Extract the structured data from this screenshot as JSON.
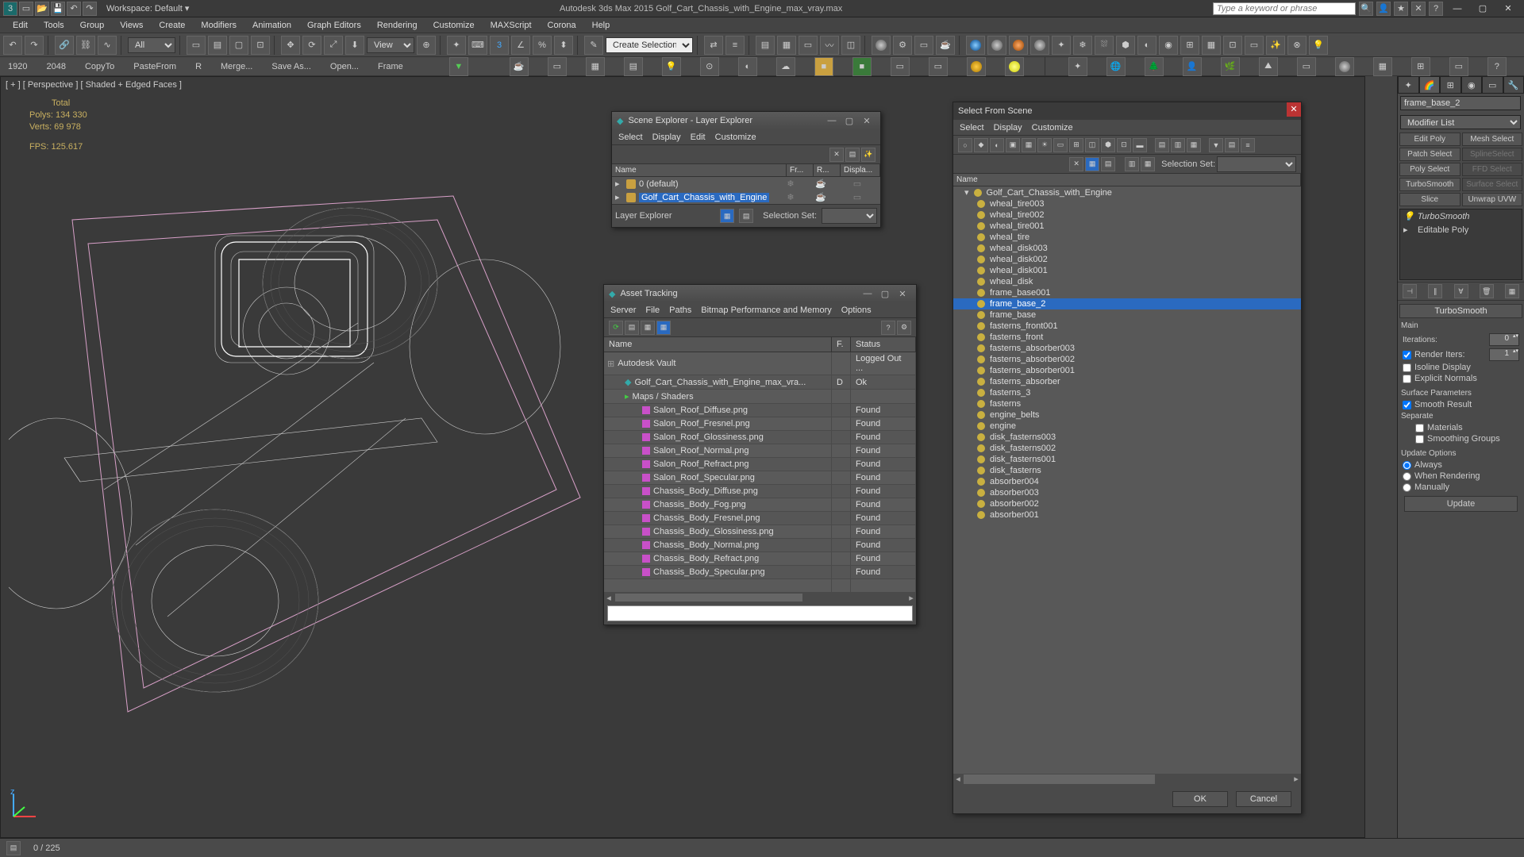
{
  "titlebar": {
    "workspace_label": "Workspace: Default",
    "app_title": "Autodesk 3ds Max 2015    Golf_Cart_Chassis_with_Engine_max_vray.max",
    "search_placeholder": "Type a keyword or phrase"
  },
  "menubar": [
    "Edit",
    "Tools",
    "Group",
    "Views",
    "Create",
    "Modifiers",
    "Animation",
    "Graph Editors",
    "Rendering",
    "Customize",
    "MAXScript",
    "Corona",
    "Help"
  ],
  "toolbar1": {
    "filter_label": "All",
    "view_label": "View",
    "selset_label": "Create Selection Se"
  },
  "toolbar2": [
    "1920",
    "2048",
    "CopyTo",
    "PasteFrom",
    "R",
    "Merge...",
    "Save As...",
    "Open...",
    "Frame"
  ],
  "viewport": {
    "label": "[ + ] [ Perspective ] [ Shaded + Edged Faces ]",
    "stats_total": "Total",
    "stats_polys": "Polys:   134 330",
    "stats_verts": "Verts:   69 978",
    "stats_fps": "FPS:      125.617"
  },
  "scene_explorer": {
    "title": "Scene Explorer - Layer Explorer",
    "menus": [
      "Select",
      "Display",
      "Edit",
      "Customize"
    ],
    "cols": {
      "name": "Name",
      "frozen": "Fr...",
      "render": "R...",
      "display": "Displa..."
    },
    "rows": [
      {
        "label": "0 (default)",
        "sel": false
      },
      {
        "label": "Golf_Cart_Chassis_with_Engine",
        "sel": true
      }
    ],
    "footer_label": "Layer Explorer",
    "selset": "Selection Set:"
  },
  "asset_tracking": {
    "title": "Asset Tracking",
    "menus": [
      "Server",
      "File",
      "Paths",
      "Bitmap Performance and Memory",
      "Options"
    ],
    "cols": {
      "name": "Name",
      "f": "F.",
      "status": "Status"
    },
    "rows": [
      {
        "name": "Autodesk Vault",
        "status": "Logged Out ...",
        "indent": 0,
        "icon": "vault"
      },
      {
        "name": "Golf_Cart_Chassis_with_Engine_max_vra...",
        "f": "D",
        "status": "Ok",
        "indent": 1,
        "icon": "max"
      },
      {
        "name": "Maps / Shaders",
        "status": "",
        "indent": 1,
        "icon": "folder"
      },
      {
        "name": "Salon_Roof_Diffuse.png",
        "status": "Found",
        "indent": 2,
        "icon": "img"
      },
      {
        "name": "Salon_Roof_Fresnel.png",
        "status": "Found",
        "indent": 2,
        "icon": "img"
      },
      {
        "name": "Salon_Roof_Glossiness.png",
        "status": "Found",
        "indent": 2,
        "icon": "img"
      },
      {
        "name": "Salon_Roof_Normal.png",
        "status": "Found",
        "indent": 2,
        "icon": "img"
      },
      {
        "name": "Salon_Roof_Refract.png",
        "status": "Found",
        "indent": 2,
        "icon": "img"
      },
      {
        "name": "Salon_Roof_Specular.png",
        "status": "Found",
        "indent": 2,
        "icon": "img"
      },
      {
        "name": "Chassis_Body_Diffuse.png",
        "status": "Found",
        "indent": 2,
        "icon": "img"
      },
      {
        "name": "Chassis_Body_Fog.png",
        "status": "Found",
        "indent": 2,
        "icon": "img"
      },
      {
        "name": "Chassis_Body_Fresnel.png",
        "status": "Found",
        "indent": 2,
        "icon": "img"
      },
      {
        "name": "Chassis_Body_Glossiness.png",
        "status": "Found",
        "indent": 2,
        "icon": "img"
      },
      {
        "name": "Chassis_Body_Normal.png",
        "status": "Found",
        "indent": 2,
        "icon": "img"
      },
      {
        "name": "Chassis_Body_Refract.png",
        "status": "Found",
        "indent": 2,
        "icon": "img"
      },
      {
        "name": "Chassis_Body_Specular.png",
        "status": "Found",
        "indent": 2,
        "icon": "img"
      }
    ]
  },
  "select_from_scene": {
    "title": "Select From Scene",
    "menus": [
      "Select",
      "Display",
      "Customize"
    ],
    "selset": "Selection Set:",
    "name_col": "Name",
    "items": [
      {
        "label": "Golf_Cart_Chassis_with_Engine",
        "root": true
      },
      {
        "label": "wheal_tire003"
      },
      {
        "label": "wheal_tire002"
      },
      {
        "label": "wheal_tire001"
      },
      {
        "label": "wheal_tire"
      },
      {
        "label": "wheal_disk003"
      },
      {
        "label": "wheal_disk002"
      },
      {
        "label": "wheal_disk001"
      },
      {
        "label": "wheal_disk"
      },
      {
        "label": "frame_base001"
      },
      {
        "label": "frame_base_2",
        "sel": true
      },
      {
        "label": "frame_base"
      },
      {
        "label": "fasterns_front001"
      },
      {
        "label": "fasterns_front"
      },
      {
        "label": "fasterns_absorber003"
      },
      {
        "label": "fasterns_absorber002"
      },
      {
        "label": "fasterns_absorber001"
      },
      {
        "label": "fasterns_absorber"
      },
      {
        "label": "fasterns_3"
      },
      {
        "label": "fasterns"
      },
      {
        "label": "engine_belts"
      },
      {
        "label": "engine"
      },
      {
        "label": "disk_fasterns003"
      },
      {
        "label": "disk_fasterns002"
      },
      {
        "label": "disk_fasterns001"
      },
      {
        "label": "disk_fasterns"
      },
      {
        "label": "absorber004"
      },
      {
        "label": "absorber003"
      },
      {
        "label": "absorber002"
      },
      {
        "label": "absorber001"
      }
    ],
    "ok": "OK",
    "cancel": "Cancel"
  },
  "cmd_panel": {
    "obj_name": "frame_base_2",
    "modifier_list": "Modifier List",
    "mod_buttons": [
      [
        "Edit Poly",
        "Mesh Select"
      ],
      [
        "Patch Select",
        "SplineSelect"
      ],
      [
        "Poly Select",
        "FFD Select"
      ],
      [
        "TurboSmooth",
        "Surface Select"
      ],
      [
        "Slice",
        "Unwrap UVW"
      ]
    ],
    "stack": [
      {
        "label": "TurboSmooth",
        "italic": true,
        "bulb": true
      },
      {
        "label": "Editable Poly",
        "italic": false
      }
    ],
    "rollout_title": "TurboSmooth",
    "main_label": "Main",
    "iterations_label": "Iterations:",
    "iterations_val": "0",
    "render_iters_label": "Render Iters:",
    "render_iters_val": "1",
    "isoline": "Isoline Display",
    "explicit": "Explicit Normals",
    "surface_params": "Surface Parameters",
    "smooth_result": "Smooth Result",
    "separate": "Separate",
    "materials": "Materials",
    "smoothing_groups": "Smoothing Groups",
    "update_options": "Update Options",
    "always": "Always",
    "when_rendering": "When Rendering",
    "manually": "Manually",
    "update_btn": "Update"
  },
  "statusbar": {
    "frame": "0 / 225"
  }
}
